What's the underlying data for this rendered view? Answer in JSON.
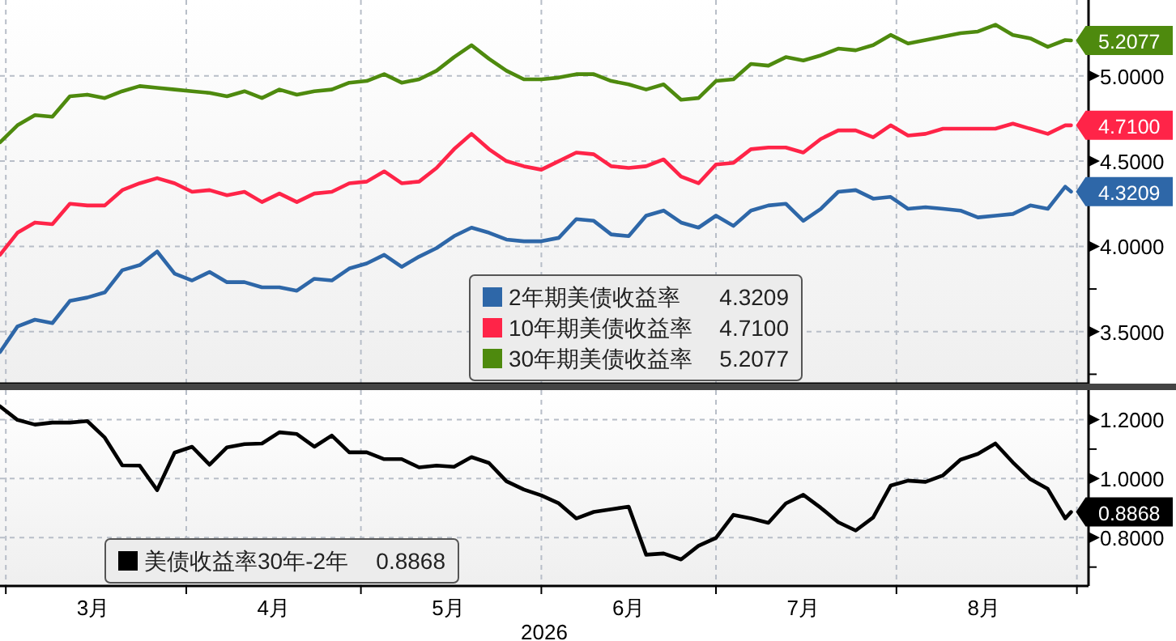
{
  "chart_data": [
    {
      "type": "line",
      "legend": "bottom",
      "grid": true,
      "tick_labels": "y",
      "line_style": "solid",
      "marker": "none",
      "x": [
        "2026-02-28",
        "2026-03-03",
        "2026-03-06",
        "2026-03-09",
        "2026-03-12",
        "2026-03-15",
        "2026-03-18",
        "2026-03-21",
        "2026-03-24",
        "2026-03-27",
        "2026-03-30",
        "2026-04-02",
        "2026-04-05",
        "2026-04-08",
        "2026-04-11",
        "2026-04-14",
        "2026-04-17",
        "2026-04-20",
        "2026-04-23",
        "2026-04-26",
        "2026-04-29",
        "2026-05-02",
        "2026-05-05",
        "2026-05-08",
        "2026-05-11",
        "2026-05-14",
        "2026-05-17",
        "2026-05-20",
        "2026-05-23",
        "2026-05-26",
        "2026-05-29",
        "2026-06-01",
        "2026-06-04",
        "2026-06-07",
        "2026-06-10",
        "2026-06-13",
        "2026-06-16",
        "2026-06-19",
        "2026-06-22",
        "2026-06-25",
        "2026-06-28",
        "2026-07-01",
        "2026-07-04",
        "2026-07-07",
        "2026-07-10",
        "2026-07-13",
        "2026-07-16",
        "2026-07-19",
        "2026-07-22",
        "2026-07-25",
        "2026-07-28",
        "2026-07-31",
        "2026-08-03",
        "2026-08-06",
        "2026-08-09",
        "2026-08-12",
        "2026-08-15",
        "2026-08-18",
        "2026-08-21",
        "2026-08-24",
        "2026-08-27",
        "2026-08-30",
        "2026-08-31"
      ],
      "xlim": [
        "2026-02-28",
        "2026-09-03"
      ],
      "xticks": [
        {
          "value": "2026-03-01",
          "label": null
        },
        {
          "value": "2026-04-01",
          "label": null
        },
        {
          "value": "2026-05-01",
          "label": null
        },
        {
          "value": "2026-06-01",
          "label": null
        },
        {
          "value": "2026-07-01",
          "label": null
        },
        {
          "value": "2026-08-01",
          "label": null
        },
        {
          "value": "2026-09-01",
          "label": null
        }
      ],
      "ylim": [
        3.195,
        5.445
      ],
      "yticks": [
        {
          "value": 3.25,
          "label": null
        },
        {
          "value": 3.5,
          "label": "3.5000"
        },
        {
          "value": 3.75,
          "label": null
        },
        {
          "value": 4.0,
          "label": "4.0000"
        },
        {
          "value": 4.25,
          "label": null
        },
        {
          "value": 4.5,
          "label": "4.5000"
        },
        {
          "value": 4.75,
          "label": null
        },
        {
          "value": 5.0,
          "label": "5.0000"
        }
      ],
      "series": [
        {
          "name": "2年期美债收益率",
          "color": "#2e67a8",
          "values": [
            3.38,
            3.53,
            3.57,
            3.55,
            3.68,
            3.7,
            3.73,
            3.86,
            3.89,
            3.97,
            3.84,
            3.8,
            3.85,
            3.79,
            3.79,
            3.76,
            3.76,
            3.74,
            3.81,
            3.8,
            3.87,
            3.9,
            3.95,
            3.88,
            3.94,
            3.99,
            4.06,
            4.11,
            4.08,
            4.04,
            4.03,
            4.03,
            4.05,
            4.16,
            4.15,
            4.07,
            4.06,
            4.18,
            4.21,
            4.14,
            4.11,
            4.18,
            4.12,
            4.21,
            4.24,
            4.25,
            4.15,
            4.22,
            4.32,
            4.33,
            4.28,
            4.29,
            4.22,
            4.23,
            4.22,
            4.21,
            4.17,
            4.18,
            4.19,
            4.24,
            4.22,
            4.35,
            4.3209
          ],
          "value_labels": [
            null,
            null,
            null,
            null,
            null,
            null,
            null,
            null,
            null,
            null,
            null,
            null,
            null,
            null,
            null,
            null,
            null,
            null,
            null,
            null,
            null,
            null,
            null,
            null,
            null,
            null,
            null,
            null,
            null,
            null,
            null,
            null,
            null,
            null,
            null,
            null,
            null,
            null,
            null,
            null,
            null,
            null,
            null,
            null,
            null,
            null,
            null,
            null,
            null,
            null,
            null,
            null,
            null,
            null,
            null,
            null,
            null,
            null,
            null,
            null,
            null,
            null,
            "4.3209"
          ]
        },
        {
          "name": "10年期美债收益率",
          "color": "#ff2448",
          "values": [
            3.95,
            4.08,
            4.14,
            4.13,
            4.25,
            4.24,
            4.24,
            4.33,
            4.37,
            4.4,
            4.37,
            4.32,
            4.33,
            4.3,
            4.32,
            4.26,
            4.31,
            4.26,
            4.31,
            4.32,
            4.37,
            4.38,
            4.44,
            4.37,
            4.38,
            4.46,
            4.57,
            4.66,
            4.57,
            4.5,
            4.47,
            4.45,
            4.5,
            4.55,
            4.54,
            4.47,
            4.46,
            4.47,
            4.51,
            4.41,
            4.37,
            4.48,
            4.49,
            4.57,
            4.58,
            4.58,
            4.55,
            4.63,
            4.68,
            4.68,
            4.64,
            4.71,
            4.65,
            4.66,
            4.69,
            4.69,
            4.69,
            4.69,
            4.72,
            4.69,
            4.66,
            4.71,
            4.71
          ],
          "value_labels": [
            null,
            null,
            null,
            null,
            null,
            null,
            null,
            null,
            null,
            null,
            null,
            null,
            null,
            null,
            null,
            null,
            null,
            null,
            null,
            null,
            null,
            null,
            null,
            null,
            null,
            null,
            null,
            null,
            null,
            null,
            null,
            null,
            null,
            null,
            null,
            null,
            null,
            null,
            null,
            null,
            null,
            null,
            null,
            null,
            null,
            null,
            null,
            null,
            null,
            null,
            null,
            null,
            null,
            null,
            null,
            null,
            null,
            null,
            null,
            null,
            null,
            null,
            "4.7100"
          ]
        },
        {
          "name": "30年期美债收益率",
          "color": "#4e8a0e",
          "values": [
            4.61,
            4.71,
            4.77,
            4.76,
            4.88,
            4.89,
            4.87,
            4.91,
            4.94,
            4.93,
            4.92,
            4.91,
            4.9,
            4.88,
            4.91,
            4.87,
            4.92,
            4.89,
            4.91,
            4.92,
            4.96,
            4.97,
            5.01,
            4.96,
            4.98,
            5.03,
            5.11,
            5.18,
            5.1,
            5.03,
            4.98,
            4.98,
            4.99,
            5.01,
            5.01,
            4.97,
            4.95,
            4.92,
            4.95,
            4.86,
            4.87,
            4.97,
            4.98,
            5.07,
            5.06,
            5.11,
            5.09,
            5.12,
            5.16,
            5.15,
            5.18,
            5.24,
            5.19,
            5.21,
            5.23,
            5.25,
            5.26,
            5.3,
            5.24,
            5.22,
            5.17,
            5.21,
            5.2077
          ],
          "value_labels": [
            null,
            null,
            null,
            null,
            null,
            null,
            null,
            null,
            null,
            null,
            null,
            null,
            null,
            null,
            null,
            null,
            null,
            null,
            null,
            null,
            null,
            null,
            null,
            null,
            null,
            null,
            null,
            null,
            null,
            null,
            null,
            null,
            null,
            null,
            null,
            null,
            null,
            null,
            null,
            null,
            null,
            null,
            null,
            null,
            null,
            null,
            null,
            null,
            null,
            null,
            null,
            null,
            null,
            null,
            null,
            null,
            null,
            null,
            null,
            null,
            null,
            null,
            "5.2077"
          ]
        }
      ]
    },
    {
      "type": "line",
      "legend": "bottom left",
      "grid": true,
      "line_style": "solid",
      "marker": "none",
      "xlabel": "2026",
      "x": [
        "2026-02-28",
        "2026-03-03",
        "2026-03-06",
        "2026-03-09",
        "2026-03-12",
        "2026-03-15",
        "2026-03-18",
        "2026-03-21",
        "2026-03-24",
        "2026-03-27",
        "2026-03-30",
        "2026-04-02",
        "2026-04-05",
        "2026-04-08",
        "2026-04-11",
        "2026-04-14",
        "2026-04-17",
        "2026-04-20",
        "2026-04-23",
        "2026-04-26",
        "2026-04-29",
        "2026-05-02",
        "2026-05-05",
        "2026-05-08",
        "2026-05-11",
        "2026-05-14",
        "2026-05-17",
        "2026-05-20",
        "2026-05-23",
        "2026-05-26",
        "2026-05-29",
        "2026-06-01",
        "2026-06-04",
        "2026-06-07",
        "2026-06-10",
        "2026-06-13",
        "2026-06-16",
        "2026-06-19",
        "2026-06-22",
        "2026-06-25",
        "2026-06-28",
        "2026-07-01",
        "2026-07-04",
        "2026-07-07",
        "2026-07-10",
        "2026-07-13",
        "2026-07-16",
        "2026-07-19",
        "2026-07-22",
        "2026-07-25",
        "2026-07-28",
        "2026-07-31",
        "2026-08-03",
        "2026-08-06",
        "2026-08-09",
        "2026-08-12",
        "2026-08-15",
        "2026-08-18",
        "2026-08-21",
        "2026-08-24",
        "2026-08-27",
        "2026-08-30",
        "2026-08-31"
      ],
      "xlim": [
        "2026-02-28",
        "2026-09-03"
      ],
      "xticks": [
        {
          "value": "2026-03-01",
          "label": null
        },
        {
          "value": "2026-03-16",
          "label": "3月"
        },
        {
          "value": "2026-04-01",
          "label": null
        },
        {
          "value": "2026-04-16",
          "label": "4月"
        },
        {
          "value": "2026-05-01",
          "label": null
        },
        {
          "value": "2026-05-16",
          "label": "5月"
        },
        {
          "value": "2026-06-01",
          "label": null
        },
        {
          "value": "2026-06-16",
          "label": "6月"
        },
        {
          "value": "2026-07-01",
          "label": null
        },
        {
          "value": "2026-07-16",
          "label": "7月"
        },
        {
          "value": "2026-08-01",
          "label": null
        },
        {
          "value": "2026-08-16",
          "label": "8月"
        },
        {
          "value": "2026-09-01",
          "label": null
        }
      ],
      "ylim": [
        0.636,
        1.3
      ],
      "yticks": [
        {
          "value": 0.7,
          "label": null
        },
        {
          "value": 0.8,
          "label": "0.8000"
        },
        {
          "value": 0.9,
          "label": null
        },
        {
          "value": 1.0,
          "label": "1.0000"
        },
        {
          "value": 1.1,
          "label": null
        },
        {
          "value": 1.2,
          "label": "1.2000"
        }
      ],
      "series": [
        {
          "name": "美债收益率30年-2年",
          "color": "#000000",
          "values": [
            1.245,
            1.199,
            1.183,
            1.19,
            1.19,
            1.195,
            1.139,
            1.045,
            1.044,
            0.961,
            1.088,
            1.108,
            1.047,
            1.106,
            1.117,
            1.119,
            1.157,
            1.151,
            1.108,
            1.146,
            1.089,
            1.089,
            1.066,
            1.066,
            1.038,
            1.044,
            1.04,
            1.073,
            1.053,
            0.991,
            0.963,
            0.943,
            0.916,
            0.865,
            0.887,
            0.896,
            0.905,
            0.742,
            0.746,
            0.726,
            0.772,
            0.799,
            0.877,
            0.865,
            0.85,
            0.916,
            0.945,
            0.901,
            0.852,
            0.824,
            0.868,
            0.976,
            0.993,
            0.989,
            1.011,
            1.064,
            1.084,
            1.119,
            1.055,
            0.998,
            0.965,
            0.865,
            0.8868
          ],
          "value_labels": [
            null,
            null,
            null,
            null,
            null,
            null,
            null,
            null,
            null,
            null,
            null,
            null,
            null,
            null,
            null,
            null,
            null,
            null,
            null,
            null,
            null,
            null,
            null,
            null,
            null,
            null,
            null,
            null,
            null,
            null,
            null,
            null,
            null,
            null,
            null,
            null,
            null,
            null,
            null,
            null,
            null,
            null,
            null,
            null,
            null,
            null,
            null,
            null,
            null,
            null,
            null,
            null,
            null,
            null,
            null,
            null,
            null,
            null,
            null,
            null,
            null,
            null,
            "0.8868"
          ]
        }
      ]
    }
  ]
}
